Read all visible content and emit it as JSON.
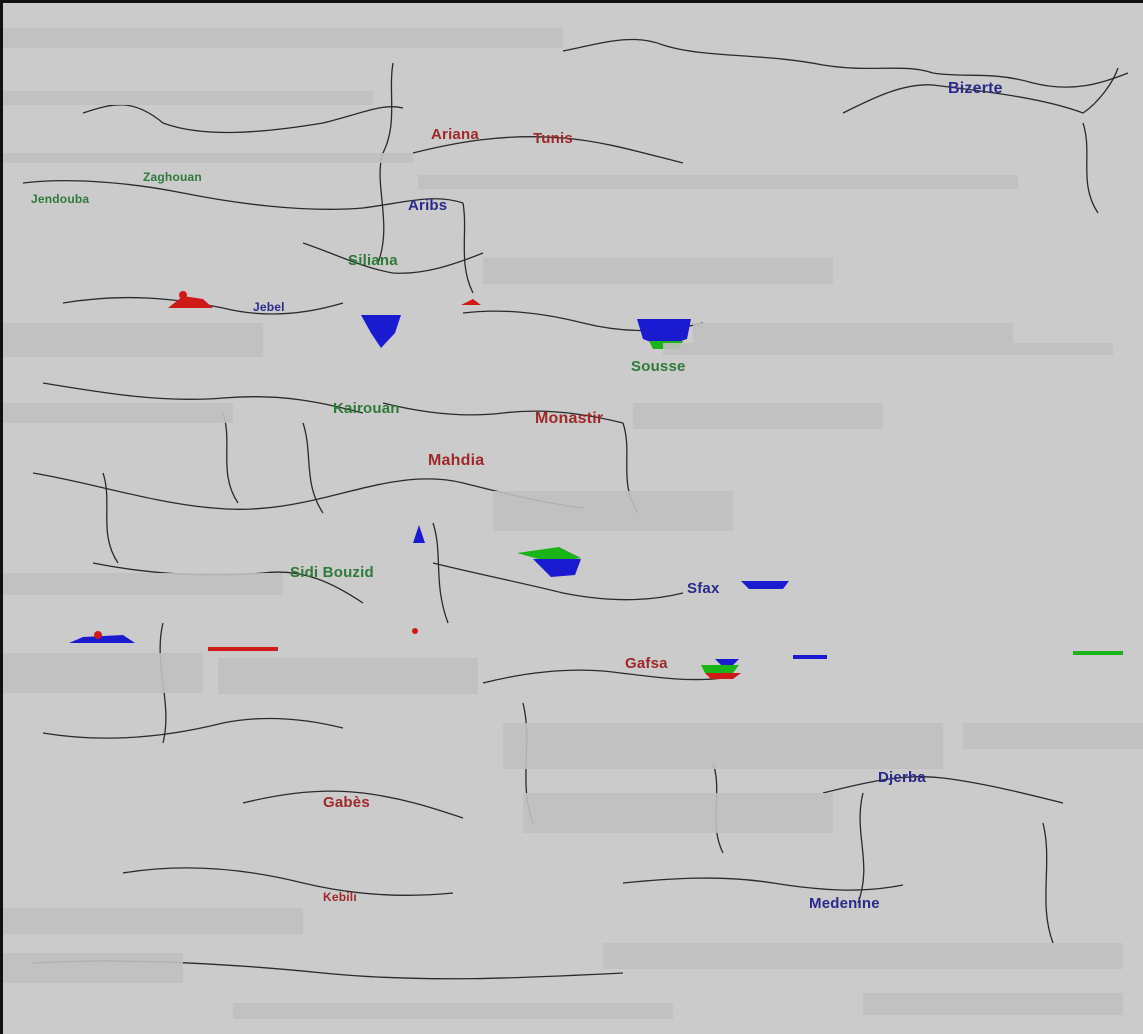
{
  "map": {
    "colors": {
      "background": "#c8c8c8",
      "land": "#cbcbcb",
      "border_line": "#2a2a2a",
      "label_blue": "#2a2a8a",
      "label_red": "#a0282a",
      "label_green": "#2f7a3a",
      "marker_blue": "#1a1ad0",
      "marker_red": "#d01a1a",
      "marker_green": "#18b418"
    },
    "places": [
      {
        "name": "Bizerte",
        "color": "label_blue"
      },
      {
        "name": "Ariana",
        "color": "label_red"
      },
      {
        "name": "Tunis",
        "color": "label_red"
      },
      {
        "name": "Aribs",
        "color": "label_blue"
      },
      {
        "name": "Siliana",
        "color": "label_green"
      },
      {
        "name": "Jendouba",
        "color": "label_green"
      },
      {
        "name": "Zaghouan",
        "color": "label_green"
      },
      {
        "name": "Jebel",
        "color": "label_blue"
      },
      {
        "name": "Sousse",
        "color": "label_green"
      },
      {
        "name": "Kairouan",
        "color": "label_green"
      },
      {
        "name": "Monastir",
        "color": "label_red"
      },
      {
        "name": "Mahdia",
        "color": "label_red"
      },
      {
        "name": "Sidi Bouzid",
        "color": "label_green"
      },
      {
        "name": "Sfax",
        "color": "label_blue"
      },
      {
        "name": "Gafsa",
        "color": "label_red"
      },
      {
        "name": "Gabès",
        "color": "label_red"
      },
      {
        "name": "Kebili",
        "color": "label_red"
      },
      {
        "name": "Medenine",
        "color": "label_blue"
      },
      {
        "name": "Djerba",
        "color": "label_blue"
      }
    ]
  }
}
